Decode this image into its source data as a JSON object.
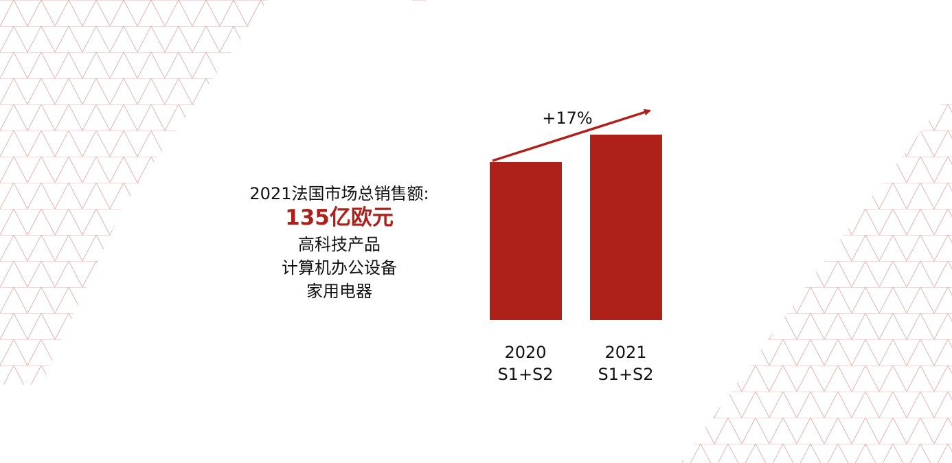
{
  "summary": {
    "heading": "2021法国市场总销售额:",
    "total": "135亿欧元",
    "items": [
      "高科技产品",
      "计算机办公设备",
      "家用电器"
    ]
  },
  "chart_data": {
    "type": "bar",
    "annotation": "+17%",
    "categories": [
      "2020\nS1+S2",
      "2021\nS1+S2"
    ],
    "values": [
      115,
      135
    ],
    "color": "#ad2119"
  }
}
